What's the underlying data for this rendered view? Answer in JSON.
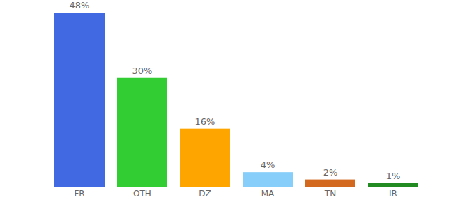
{
  "chart_data": {
    "type": "bar",
    "categories": [
      "FR",
      "OTH",
      "DZ",
      "MA",
      "TN",
      "IR"
    ],
    "values": [
      48,
      30,
      16,
      4,
      2,
      1
    ],
    "value_labels": [
      "48%",
      "30%",
      "16%",
      "4%",
      "2%",
      "1%"
    ],
    "colors": [
      "#4169e1",
      "#32cd32",
      "#ffa500",
      "#87cefa",
      "#d2691e",
      "#228b22"
    ],
    "ylim": [
      0,
      48
    ],
    "data_labels": true,
    "tick_labels": "x",
    "grid": false
  }
}
